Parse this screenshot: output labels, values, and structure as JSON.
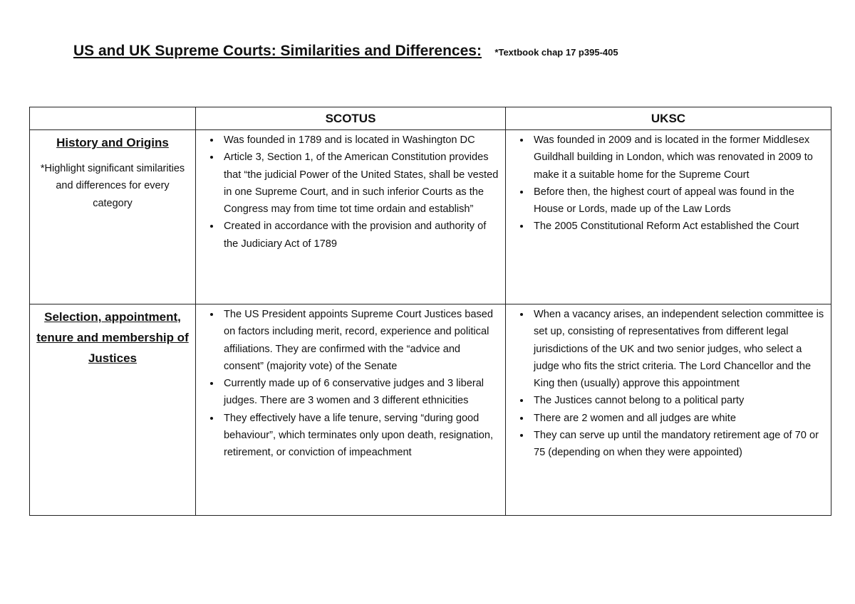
{
  "document": {
    "title": "US and UK Supreme Courts: Similarities and Differences:",
    "reference_note": "*Textbook chap 17 p395-405"
  },
  "table": {
    "headers": [
      "",
      "SCOTUS",
      "UKSC"
    ],
    "rows": [
      {
        "category": "History and Origins",
        "category_note": "*Highlight significant similarities and differences for every category",
        "scotus": [
          "Was founded in 1789 and is located in Washington DC",
          "Article 3, Section 1, of the American Constitution provides that “the judicial Power of the United States, shall be vested in one Supreme Court, and in such inferior Courts as the Congress may from time tot time ordain and establish”",
          "Created in accordance with the provision and authority of the Judiciary Act of 1789"
        ],
        "uksc": [
          "Was founded in 2009 and is located in the former Middlesex Guildhall building in London, which was renovated in 2009 to make it a suitable home for the Supreme Court",
          "Before then, the highest court of appeal was found in the House or Lords, made up of the Law Lords",
          "The 2005 Constitutional Reform Act established the Court"
        ]
      },
      {
        "category": "Selection, appointment, tenure and membership of Justices",
        "scotus": [
          "The US President appoints Supreme Court Justices based on factors including merit, record, experience and political affiliations. They are confirmed with the “advice and consent” (majority vote) of the Senate",
          "Currently made up of 6 conservative judges and 3 liberal judges. There are 3 women and 3 different ethnicities",
          "They effectively have a life tenure, serving “during good behaviour”, which terminates only upon death, resignation, retirement, or conviction of impeachment"
        ],
        "uksc": [
          "When a vacancy arises, an independent selection committee  is set up, consisting of representatives from different legal jurisdictions of the UK and two senior judges, who select a judge who fits the strict criteria. The Lord Chancellor and the King then (usually) approve this appointment",
          "The Justices cannot belong to a political party",
          "There are 2 women and all judges are white",
          "They can serve up until the mandatory retirement age of 70 or 75 (depending on when they were appointed)"
        ]
      }
    ]
  }
}
